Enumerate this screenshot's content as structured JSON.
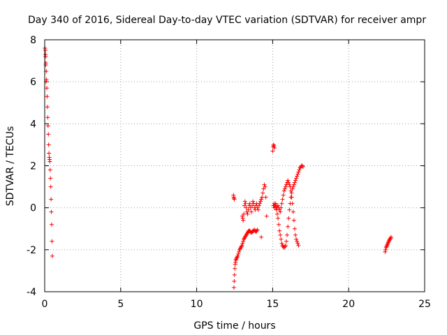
{
  "chart_data": {
    "type": "scatter",
    "title": "Day 340 of 2016, Sidereal Day-to-day VTEC variation (SDTVAR) for receiver ampr",
    "xlabel": "GPS time / hours",
    "ylabel": "SDTVAR / TECUs",
    "xlim": [
      0,
      25
    ],
    "ylim": [
      -4,
      8
    ],
    "xticks": [
      0,
      5,
      10,
      15,
      20,
      25
    ],
    "yticks": [
      -4,
      -2,
      0,
      2,
      4,
      6,
      8
    ],
    "grid": true,
    "marker": "plus",
    "color": "#ff0000",
    "series": [
      {
        "name": "ampr",
        "x": [
          0.02,
          0.04,
          0.06,
          0.08,
          0.1,
          0.12,
          0.14,
          0.16,
          0.18,
          0.2,
          0.22,
          0.24,
          0.26,
          0.28,
          0.3,
          0.32,
          0.34,
          0.36,
          0.38,
          0.4,
          0.42,
          0.44,
          0.46,
          0.48,
          0.5,
          0.05,
          0.07,
          0.09,
          12.45,
          12.47,
          12.49,
          12.51,
          12.53,
          12.55,
          12.57,
          12.6,
          12.63,
          12.66,
          12.7,
          12.74,
          12.78,
          12.82,
          12.86,
          12.9,
          12.94,
          12.98,
          13.02,
          13.06,
          13.1,
          13.14,
          13.18,
          13.22,
          13.26,
          13.3,
          13.34,
          13.38,
          13.42,
          13.46,
          13.5,
          13.55,
          13.6,
          13.65,
          13.7,
          13.75,
          13.8,
          13.85,
          13.9,
          13.95,
          14.0,
          12.42,
          12.44,
          12.46,
          12.48,
          13.0,
          13.03,
          13.06,
          13.1,
          13.14,
          13.18,
          13.22,
          13.26,
          13.3,
          13.35,
          13.4,
          13.45,
          13.5,
          13.55,
          13.6,
          13.65,
          13.7,
          13.75,
          13.8,
          13.85,
          13.9,
          13.95,
          14.0,
          14.05,
          14.1,
          14.15,
          14.2,
          14.25,
          14.3,
          14.35,
          14.4,
          14.45,
          14.5,
          14.55,
          14.6,
          14.25,
          15.0,
          15.03,
          15.06,
          15.09,
          15.12,
          15.05,
          15.1,
          15.15,
          15.2,
          15.25,
          15.3,
          15.35,
          15.4,
          15.45,
          15.5,
          15.55,
          15.6,
          15.65,
          15.7,
          15.75,
          15.8,
          15.85,
          15.9,
          15.95,
          16.0,
          16.05,
          16.1,
          16.15,
          16.2,
          16.25,
          16.3,
          16.35,
          16.4,
          16.45,
          16.5,
          16.55,
          16.6,
          16.65,
          16.7,
          16.75,
          16.8,
          16.85,
          16.9,
          16.95,
          17.0,
          15.1,
          15.15,
          15.2,
          15.25,
          15.3,
          15.35,
          15.4,
          15.45,
          15.5,
          15.55,
          15.6,
          15.65,
          15.7,
          15.75,
          15.8,
          15.85,
          15.9,
          15.95,
          16.0,
          16.05,
          16.1,
          16.15,
          16.2,
          16.25,
          16.3,
          16.35,
          16.4,
          16.45,
          16.5,
          16.55,
          16.6,
          16.65,
          16.7,
          22.4,
          22.43,
          22.46,
          22.49,
          22.52,
          22.55,
          22.58,
          22.61,
          22.64,
          22.67,
          22.7,
          22.73,
          22.76,
          22.79
        ],
        "y": [
          7.6,
          7.5,
          7.2,
          6.9,
          6.5,
          6.1,
          5.7,
          5.3,
          4.8,
          4.3,
          3.9,
          3.5,
          3.0,
          2.6,
          2.4,
          2.3,
          2.2,
          1.8,
          1.4,
          1.0,
          0.4,
          -0.2,
          -0.8,
          -1.6,
          -2.3,
          7.3,
          6.8,
          6.0,
          -3.8,
          -3.5,
          -3.2,
          -2.9,
          -2.7,
          -2.6,
          -2.5,
          -2.45,
          -2.4,
          -2.35,
          -2.3,
          -2.2,
          -2.1,
          -2.0,
          -1.95,
          -1.9,
          -1.85,
          -1.8,
          -1.7,
          -1.6,
          -1.5,
          -1.45,
          -1.4,
          -1.35,
          -1.3,
          -1.25,
          -1.2,
          -1.15,
          -1.1,
          -1.1,
          -1.1,
          -1.15,
          -1.2,
          -1.15,
          -1.1,
          -1.1,
          -1.05,
          -1.1,
          -1.15,
          -1.1,
          -1.05,
          0.6,
          0.5,
          0.45,
          0.4,
          -0.4,
          -0.5,
          -0.6,
          -0.3,
          0.1,
          0.3,
          0.2,
          0.0,
          -0.2,
          -0.3,
          -0.1,
          0.1,
          0.2,
          0.0,
          -0.2,
          0.1,
          0.3,
          0.2,
          0.0,
          -0.1,
          0.1,
          0.2,
          0.0,
          -0.1,
          0.1,
          0.2,
          0.3,
          0.4,
          0.5,
          0.7,
          0.9,
          1.1,
          1.0,
          0.5,
          -0.4,
          -1.4,
          2.7,
          2.9,
          3.0,
          2.95,
          2.85,
          0.1,
          0.2,
          0.1,
          0.0,
          -0.1,
          -0.3,
          -0.5,
          -0.8,
          -1.1,
          -1.3,
          -1.5,
          -1.7,
          -1.8,
          -1.85,
          -1.9,
          -1.85,
          -1.8,
          -1.6,
          -1.3,
          -0.9,
          -0.5,
          -0.1,
          0.2,
          0.5,
          0.7,
          0.9,
          1.0,
          1.1,
          1.2,
          1.3,
          1.4,
          1.5,
          1.6,
          1.7,
          1.8,
          1.9,
          1.95,
          2.0,
          2.0,
          1.95,
          0.0,
          0.1,
          0.2,
          0.1,
          0.0,
          0.1,
          0.0,
          -0.1,
          -0.2,
          0.0,
          0.2,
          0.4,
          0.6,
          0.8,
          0.9,
          1.0,
          1.1,
          1.2,
          1.3,
          1.2,
          1.1,
          1.0,
          0.8,
          0.5,
          0.2,
          -0.2,
          -0.6,
          -1.0,
          -1.3,
          -1.5,
          -1.6,
          -1.7,
          -1.8,
          -2.1,
          -2.0,
          -1.9,
          -1.85,
          -1.8,
          -1.75,
          -1.7,
          -1.65,
          -1.6,
          -1.55,
          -1.5,
          -1.5,
          -1.45,
          -1.4
        ]
      }
    ]
  }
}
